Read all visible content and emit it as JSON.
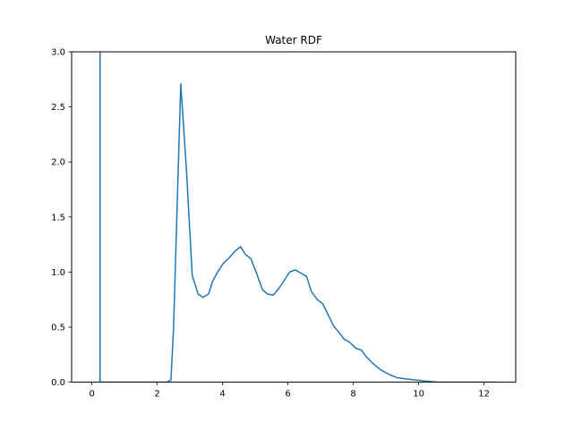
{
  "chart_data": {
    "type": "line",
    "title": "Water RDF",
    "xlabel": "",
    "ylabel": "",
    "xlim": [
      -0.62,
      12.97
    ],
    "ylim": [
      0,
      3.0
    ],
    "grid": false,
    "xticks": [
      0,
      2,
      4,
      6,
      8,
      10,
      12
    ],
    "xtick_labels": [
      "0",
      "2",
      "4",
      "6",
      "8",
      "10",
      "12"
    ],
    "yticks": [
      0.0,
      0.5,
      1.0,
      1.5,
      2.0,
      2.5,
      3.0
    ],
    "ytick_labels": [
      "0.0",
      "0.5",
      "1.0",
      "1.5",
      "2.0",
      "2.5",
      "3.0"
    ],
    "line_color": "#1f77b4",
    "series": [
      {
        "x": [
          0.25,
          0.25,
          0.27,
          0.5,
          1.0,
          1.5,
          2.0,
          2.3,
          2.42,
          2.5,
          2.72,
          2.9,
          3.07,
          3.25,
          3.4,
          3.57,
          3.7,
          3.85,
          4.0,
          4.2,
          4.38,
          4.55,
          4.7,
          4.87,
          5.05,
          5.22,
          5.38,
          5.55,
          5.72,
          5.9,
          6.05,
          6.22,
          6.4,
          6.57,
          6.72,
          6.9,
          7.07,
          7.25,
          7.4,
          7.57,
          7.72,
          7.9,
          8.07,
          8.25,
          8.4,
          8.6,
          8.85,
          9.1,
          9.35,
          9.6,
          9.9,
          10.2,
          10.6,
          11.0,
          11.5,
          12.0,
          12.35
        ],
        "y": [
          3.0,
          0.0,
          0.0,
          0.0,
          0.0,
          0.0,
          0.0,
          0.0,
          0.02,
          0.5,
          2.71,
          1.9,
          0.97,
          0.8,
          0.77,
          0.8,
          0.92,
          1.0,
          1.07,
          1.13,
          1.19,
          1.23,
          1.16,
          1.12,
          0.98,
          0.84,
          0.8,
          0.79,
          0.85,
          0.93,
          1.0,
          1.02,
          0.99,
          0.96,
          0.82,
          0.75,
          0.71,
          0.6,
          0.51,
          0.45,
          0.39,
          0.36,
          0.31,
          0.29,
          0.23,
          0.17,
          0.11,
          0.07,
          0.04,
          0.03,
          0.02,
          0.01,
          0.0,
          0.0,
          0.0,
          0.0,
          0.0
        ]
      }
    ]
  }
}
